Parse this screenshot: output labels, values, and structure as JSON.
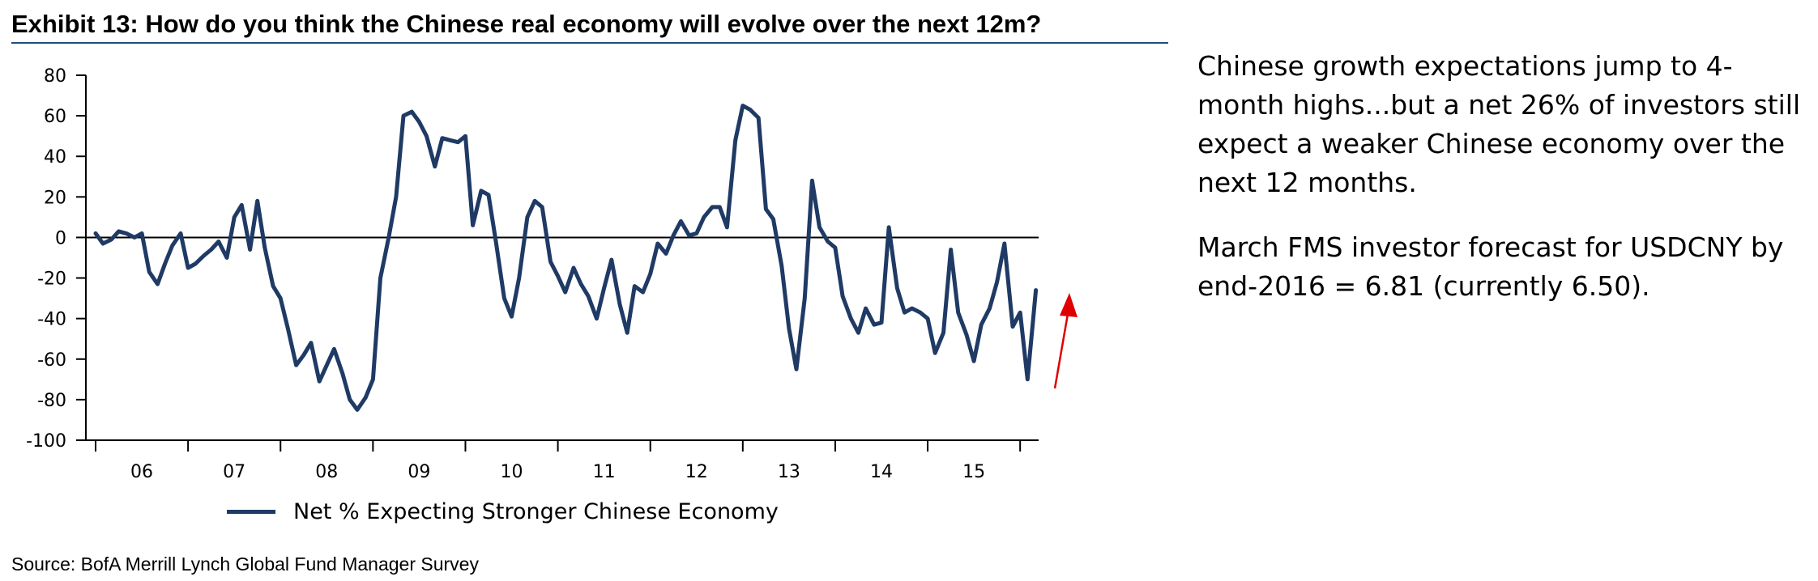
{
  "exhibit": {
    "title": "Exhibit 13: How do you think the Chinese real economy will evolve over the next 12m?",
    "source": "Source: BofA Merrill Lynch Global Fund Manager Survey"
  },
  "commentary": {
    "paragraph_1": "Chinese growth expectations jump to 4-month highs...but a net 26% of investors still expect a weaker Chinese economy over the next 12 months.",
    "paragraph_2": "March FMS investor forecast for USDCNY by end-2016 = 6.81 (currently 6.50)."
  },
  "colors": {
    "series": "#1f3a64",
    "arrow": "#e00000",
    "axis": "#000000",
    "title_rule": "#1f4e79"
  },
  "chart_data": {
    "type": "line",
    "title": "",
    "xlabel": "",
    "ylabel": "",
    "ylim": [
      -100,
      80
    ],
    "yticks": [
      80,
      60,
      40,
      20,
      0,
      -20,
      -40,
      -60,
      -80,
      -100
    ],
    "ytick_labels": [
      "80",
      "60",
      "40",
      "20",
      "0",
      "-20",
      "-40",
      "-60",
      "-80",
      "-100"
    ],
    "x_range": [
      2006.0,
      2016.2
    ],
    "xtick_labels": [
      "06",
      "07",
      "08",
      "09",
      "10",
      "11",
      "12",
      "13",
      "14",
      "15"
    ],
    "xtick_positions": [
      2006.5,
      2007.5,
      2008.5,
      2009.5,
      2010.5,
      2011.5,
      2012.5,
      2013.5,
      2014.5,
      2015.5
    ],
    "year_boundaries": [
      2006,
      2007,
      2008,
      2009,
      2010,
      2011,
      2012,
      2013,
      2014,
      2015,
      2016
    ],
    "zero_line": true,
    "legend": "bottom",
    "annotation": "red upward arrow at latest reading",
    "series": [
      {
        "name": "Net % Expecting Stronger Chinese Economy",
        "x": [
          2006.0,
          2006.08,
          2006.17,
          2006.25,
          2006.33,
          2006.42,
          2006.5,
          2006.58,
          2006.67,
          2006.75,
          2006.83,
          2006.92,
          2007.0,
          2007.08,
          2007.17,
          2007.25,
          2007.33,
          2007.42,
          2007.5,
          2007.58,
          2007.67,
          2007.75,
          2007.83,
          2007.92,
          2008.0,
          2008.08,
          2008.17,
          2008.25,
          2008.33,
          2008.42,
          2008.5,
          2008.58,
          2008.67,
          2008.75,
          2008.83,
          2008.92,
          2009.0,
          2009.08,
          2009.17,
          2009.25,
          2009.33,
          2009.42,
          2009.5,
          2009.58,
          2009.67,
          2009.75,
          2009.83,
          2009.92,
          2010.0,
          2010.08,
          2010.17,
          2010.25,
          2010.33,
          2010.42,
          2010.5,
          2010.58,
          2010.67,
          2010.75,
          2010.83,
          2010.92,
          2011.0,
          2011.08,
          2011.17,
          2011.25,
          2011.33,
          2011.42,
          2011.5,
          2011.58,
          2011.67,
          2011.75,
          2011.83,
          2011.92,
          2012.0,
          2012.08,
          2012.17,
          2012.25,
          2012.33,
          2012.42,
          2012.5,
          2012.58,
          2012.67,
          2012.75,
          2012.83,
          2012.92,
          2013.0,
          2013.08,
          2013.17,
          2013.25,
          2013.33,
          2013.42,
          2013.5,
          2013.58,
          2013.67,
          2013.75,
          2013.83,
          2013.92,
          2014.0,
          2014.08,
          2014.17,
          2014.25,
          2014.33,
          2014.42,
          2014.5,
          2014.58,
          2014.67,
          2014.75,
          2014.83,
          2014.92,
          2015.0,
          2015.08,
          2015.17,
          2015.25,
          2015.33,
          2015.42,
          2015.5,
          2015.58,
          2015.67,
          2015.75,
          2015.83,
          2015.92,
          2016.0,
          2016.08,
          2016.17
        ],
        "values": [
          2,
          -3,
          -1,
          3,
          2,
          0,
          2,
          -17,
          -23,
          -13,
          -4,
          2,
          -15,
          -13,
          -9,
          -6,
          -2,
          -10,
          10,
          16,
          -6,
          18,
          -5,
          -24,
          -30,
          -45,
          -63,
          -58,
          -52,
          -71,
          -63,
          -55,
          -67,
          -80,
          -85,
          -79,
          -70,
          -20,
          0,
          20,
          60,
          62,
          57,
          50,
          35,
          49,
          48,
          47,
          50,
          6,
          23,
          21,
          -2,
          -30,
          -39,
          -20,
          10,
          18,
          15,
          -12,
          -19,
          -27,
          -15,
          -23,
          -29,
          -40,
          -25,
          -11,
          -33,
          -47,
          -24,
          -27,
          -18,
          -3,
          -8,
          1,
          8,
          1,
          2,
          10,
          15,
          15,
          5,
          48,
          65,
          63,
          59,
          14,
          9,
          -14,
          -45,
          -65,
          -30,
          28,
          5,
          -2,
          -5,
          -29,
          -40,
          -47,
          -35,
          -43,
          -42,
          5,
          -25,
          -37,
          -35,
          -37,
          -40,
          -57,
          -47,
          -6,
          -37,
          -48,
          -61,
          -43,
          -35,
          -22,
          -3,
          -44,
          -37,
          -70,
          -26
        ]
      }
    ]
  }
}
